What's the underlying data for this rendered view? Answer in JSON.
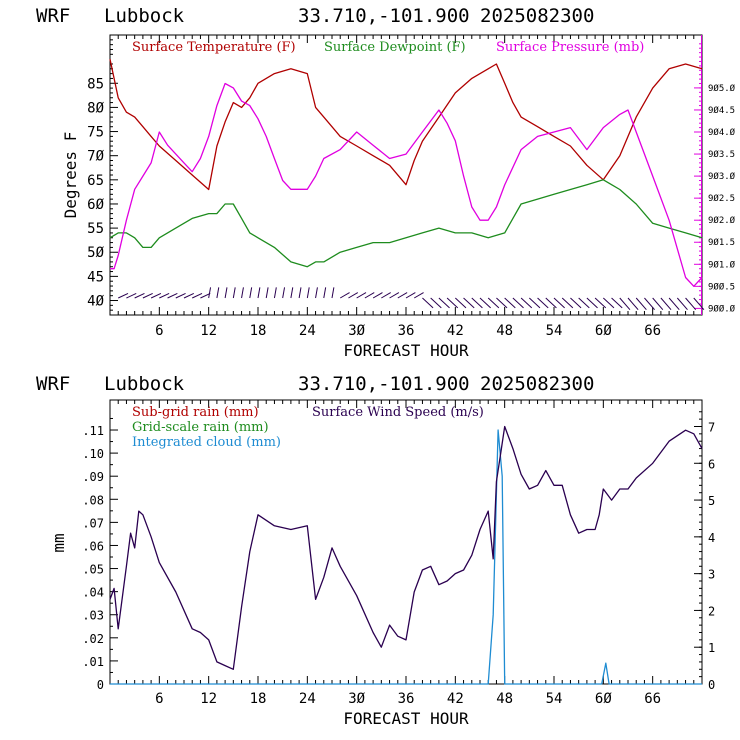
{
  "charts_header": {
    "model": "WRF",
    "station": "Lubbock",
    "coords": "33.710,-101.900",
    "run": "2025082300"
  },
  "chart_data": [
    {
      "type": "line",
      "title": "",
      "xlabel": "FORECAST HOUR",
      "ylabel": "Degrees F",
      "xlim": [
        0,
        72
      ],
      "ylim_left": [
        37,
        95
      ],
      "ylim_right": [
        899.85,
        906.2
      ],
      "x_ticks": [
        6,
        12,
        18,
        24,
        30,
        36,
        42,
        48,
        54,
        60,
        66
      ],
      "y_ticks_left": [
        40,
        45,
        50,
        55,
        60,
        65,
        70,
        75,
        80,
        85
      ],
      "y_ticks_right": [
        "900.0",
        "900.5",
        "901.0",
        "901.5",
        "902.0",
        "902.5",
        "903.0",
        "903.5",
        "904.0",
        "904.5",
        "905.0"
      ],
      "colors": {
        "temp": "#b00000",
        "dew": "#1e8c1e",
        "pres": "#e000e0",
        "barbs": "#2a0050"
      },
      "series": [
        {
          "name": "Surface Temperature (F)",
          "axis": "left",
          "color": "#b00000",
          "points": [
            [
              0,
              90
            ],
            [
              1,
              82
            ],
            [
              2,
              79
            ],
            [
              3,
              78
            ],
            [
              4,
              76
            ],
            [
              5,
              74
            ],
            [
              6,
              72
            ],
            [
              8,
              69
            ],
            [
              10,
              66
            ],
            [
              12,
              63
            ],
            [
              13,
              72
            ],
            [
              14,
              77
            ],
            [
              15,
              81
            ],
            [
              16,
              80
            ],
            [
              17,
              82
            ],
            [
              18,
              85
            ],
            [
              20,
              87
            ],
            [
              22,
              88
            ],
            [
              24,
              87
            ],
            [
              25,
              80
            ],
            [
              26,
              78
            ],
            [
              28,
              74
            ],
            [
              30,
              72
            ],
            [
              32,
              70
            ],
            [
              34,
              68
            ],
            [
              36,
              64
            ],
            [
              37,
              69
            ],
            [
              38,
              73
            ],
            [
              40,
              78
            ],
            [
              42,
              83
            ],
            [
              44,
              86
            ],
            [
              46,
              88
            ],
            [
              47,
              89
            ],
            [
              48,
              85
            ],
            [
              49,
              81
            ],
            [
              50,
              78
            ],
            [
              52,
              76
            ],
            [
              54,
              74
            ],
            [
              56,
              72
            ],
            [
              58,
              68
            ],
            [
              60,
              65
            ],
            [
              62,
              70
            ],
            [
              64,
              78
            ],
            [
              66,
              84
            ],
            [
              68,
              88
            ],
            [
              70,
              89
            ],
            [
              72,
              88
            ]
          ]
        },
        {
          "name": "Surface Dewpoint (F)",
          "axis": "left",
          "color": "#1e8c1e",
          "points": [
            [
              0,
              53
            ],
            [
              1,
              54
            ],
            [
              2,
              54
            ],
            [
              3,
              53
            ],
            [
              4,
              51
            ],
            [
              5,
              51
            ],
            [
              6,
              53
            ],
            [
              8,
              55
            ],
            [
              10,
              57
            ],
            [
              12,
              58
            ],
            [
              13,
              58
            ],
            [
              14,
              60
            ],
            [
              15,
              60
            ],
            [
              16,
              57
            ],
            [
              17,
              54
            ],
            [
              18,
              53
            ],
            [
              20,
              51
            ],
            [
              22,
              48
            ],
            [
              24,
              47
            ],
            [
              25,
              48
            ],
            [
              26,
              48
            ],
            [
              28,
              50
            ],
            [
              30,
              51
            ],
            [
              32,
              52
            ],
            [
              34,
              52
            ],
            [
              36,
              53
            ],
            [
              38,
              54
            ],
            [
              40,
              55
            ],
            [
              42,
              54
            ],
            [
              44,
              54
            ],
            [
              46,
              53
            ],
            [
              48,
              54
            ],
            [
              49,
              57
            ],
            [
              50,
              60
            ],
            [
              52,
              61
            ],
            [
              54,
              62
            ],
            [
              56,
              63
            ],
            [
              58,
              64
            ],
            [
              60,
              65
            ],
            [
              61,
              64
            ],
            [
              62,
              63
            ],
            [
              64,
              60
            ],
            [
              66,
              56
            ],
            [
              68,
              55
            ],
            [
              70,
              54
            ],
            [
              72,
              53
            ]
          ]
        },
        {
          "name": "Surface Pressure (mb)",
          "axis": "right",
          "color": "#e000e0",
          "points": [
            [
              0,
              900.9
            ],
            [
              0.5,
              900.9
            ],
            [
              1,
              901.2
            ],
            [
              2,
              902.0
            ],
            [
              3,
              902.7
            ],
            [
              4,
              903.0
            ],
            [
              5,
              903.3
            ],
            [
              6,
              904.0
            ],
            [
              7,
              903.7
            ],
            [
              8,
              903.5
            ],
            [
              9,
              903.3
            ],
            [
              10,
              903.1
            ],
            [
              11,
              903.4
            ],
            [
              12,
              903.9
            ],
            [
              13,
              904.6
            ],
            [
              14,
              905.1
            ],
            [
              15,
              905.0
            ],
            [
              16,
              904.7
            ],
            [
              17,
              904.6
            ],
            [
              18,
              904.3
            ],
            [
              19,
              903.9
            ],
            [
              20,
              903.4
            ],
            [
              21,
              902.9
            ],
            [
              22,
              902.7
            ],
            [
              24,
              902.7
            ],
            [
              25,
              903.0
            ],
            [
              26,
              903.4
            ],
            [
              28,
              903.6
            ],
            [
              30,
              904.0
            ],
            [
              32,
              903.7
            ],
            [
              34,
              903.4
            ],
            [
              36,
              903.5
            ],
            [
              38,
              904.0
            ],
            [
              40,
              904.5
            ],
            [
              41,
              904.2
            ],
            [
              42,
              903.8
            ],
            [
              43,
              903.0
            ],
            [
              44,
              902.3
            ],
            [
              45,
              902.0
            ],
            [
              46,
              902.0
            ],
            [
              47,
              902.3
            ],
            [
              48,
              902.8
            ],
            [
              50,
              903.6
            ],
            [
              52,
              903.9
            ],
            [
              54,
              904.0
            ],
            [
              56,
              904.1
            ],
            [
              58,
              903.6
            ],
            [
              60,
              904.1
            ],
            [
              62,
              904.4
            ],
            [
              63,
              904.5
            ],
            [
              64,
              904.0
            ],
            [
              66,
              903.0
            ],
            [
              68,
              902.0
            ],
            [
              70,
              900.7
            ],
            [
              71,
              900.5
            ],
            [
              72,
              900.7
            ]
          ]
        }
      ],
      "wind_barbs": {
        "hours": [
          1,
          2,
          3,
          4,
          5,
          6,
          7,
          8,
          9,
          10,
          11,
          12,
          13,
          14,
          15,
          16,
          17,
          18,
          19,
          20,
          21,
          22,
          23,
          24,
          25,
          26,
          27,
          28,
          29,
          30,
          31,
          32,
          33,
          34,
          35,
          36,
          37,
          38,
          39,
          40,
          41,
          42,
          43,
          44,
          45,
          46,
          47,
          48,
          49,
          50,
          51,
          52,
          53,
          54,
          55,
          56,
          57,
          58,
          59,
          60,
          61,
          62,
          63,
          64,
          65,
          66,
          67,
          68,
          69,
          70,
          71
        ]
      }
    },
    {
      "type": "line",
      "title": "",
      "xlabel": "FORECAST HOUR",
      "ylabel": "mm",
      "xlim": [
        0,
        72
      ],
      "ylim_left": [
        0,
        0.123
      ],
      "ylim_right": [
        0,
        7.72
      ],
      "x_ticks": [
        6,
        12,
        18,
        24,
        30,
        36,
        42,
        48,
        54,
        60,
        66
      ],
      "y_ticks_left": [
        0,
        0.01,
        0.02,
        0.03,
        0.04,
        0.05,
        0.06,
        0.07,
        0.08,
        0.09,
        0.1,
        0.11
      ],
      "y_tick_labels_left": [
        "0",
        ".01",
        ".02",
        ".03",
        ".04",
        ".05",
        ".06",
        ".07",
        ".08",
        ".09",
        ".10",
        ".11"
      ],
      "y_ticks_right": [
        0,
        1,
        2,
        3,
        4,
        5,
        6,
        7
      ],
      "series": [
        {
          "name": "Sub-grid rain (mm)",
          "axis": "left",
          "color": "#b00000",
          "points": []
        },
        {
          "name": "Grid-scale rain (mm)",
          "axis": "left",
          "color": "#1e8c1e",
          "points": []
        },
        {
          "name": "Integrated cloud (mm)",
          "axis": "left",
          "color": "#1e8cd2",
          "points": [
            [
              0,
              0
            ],
            [
              46,
              0
            ],
            [
              46.6,
              0.03
            ],
            [
              47.2,
              0.11
            ],
            [
              47.7,
              0.09
            ],
            [
              48,
              0
            ],
            [
              59.8,
              0
            ],
            [
              60.3,
              0.009
            ],
            [
              60.7,
              0
            ],
            [
              72,
              0
            ]
          ]
        },
        {
          "name": "Surface Wind Speed (m/s)",
          "axis": "right",
          "color": "#2a0050",
          "points": [
            [
              0,
              2.3
            ],
            [
              0.5,
              2.6
            ],
            [
              1,
              1.5
            ],
            [
              2,
              3.2
            ],
            [
              2.5,
              4.1
            ],
            [
              3,
              3.7
            ],
            [
              3.5,
              4.7
            ],
            [
              4,
              4.6
            ],
            [
              5,
              4.0
            ],
            [
              6,
              3.3
            ],
            [
              8,
              2.5
            ],
            [
              10,
              1.5
            ],
            [
              11,
              1.4
            ],
            [
              12,
              1.2
            ],
            [
              13,
              0.6
            ],
            [
              14,
              0.5
            ],
            [
              15,
              0.4
            ],
            [
              16,
              2.1
            ],
            [
              17,
              3.6
            ],
            [
              18,
              4.6
            ],
            [
              20,
              4.3
            ],
            [
              22,
              4.2
            ],
            [
              24,
              4.3
            ],
            [
              25,
              2.3
            ],
            [
              26,
              2.9
            ],
            [
              27,
              3.7
            ],
            [
              28,
              3.2
            ],
            [
              30,
              2.4
            ],
            [
              32,
              1.4
            ],
            [
              33,
              1.0
            ],
            [
              34,
              1.6
            ],
            [
              35,
              1.3
            ],
            [
              36,
              1.2
            ],
            [
              37,
              2.5
            ],
            [
              38,
              3.1
            ],
            [
              39,
              3.2
            ],
            [
              40,
              2.7
            ],
            [
              41,
              2.8
            ],
            [
              42,
              3.0
            ],
            [
              43,
              3.1
            ],
            [
              44,
              3.5
            ],
            [
              45,
              4.2
            ],
            [
              46,
              4.7
            ],
            [
              46.6,
              3.4
            ],
            [
              47,
              5.5
            ],
            [
              47.6,
              6.4
            ],
            [
              48,
              7.0
            ],
            [
              49,
              6.4
            ],
            [
              50,
              5.7
            ],
            [
              51,
              5.3
            ],
            [
              52,
              5.4
            ],
            [
              53,
              5.8
            ],
            [
              54,
              5.4
            ],
            [
              55,
              5.4
            ],
            [
              56,
              4.6
            ],
            [
              57,
              4.1
            ],
            [
              58,
              4.2
            ],
            [
              59,
              4.2
            ],
            [
              59.5,
              4.6
            ],
            [
              60,
              5.3
            ],
            [
              61,
              5.0
            ],
            [
              62,
              5.3
            ],
            [
              63,
              5.3
            ],
            [
              64,
              5.6
            ],
            [
              66,
              6.0
            ],
            [
              68,
              6.6
            ],
            [
              70,
              6.9
            ],
            [
              71,
              6.8
            ],
            [
              72,
              6.4
            ]
          ]
        }
      ]
    }
  ]
}
